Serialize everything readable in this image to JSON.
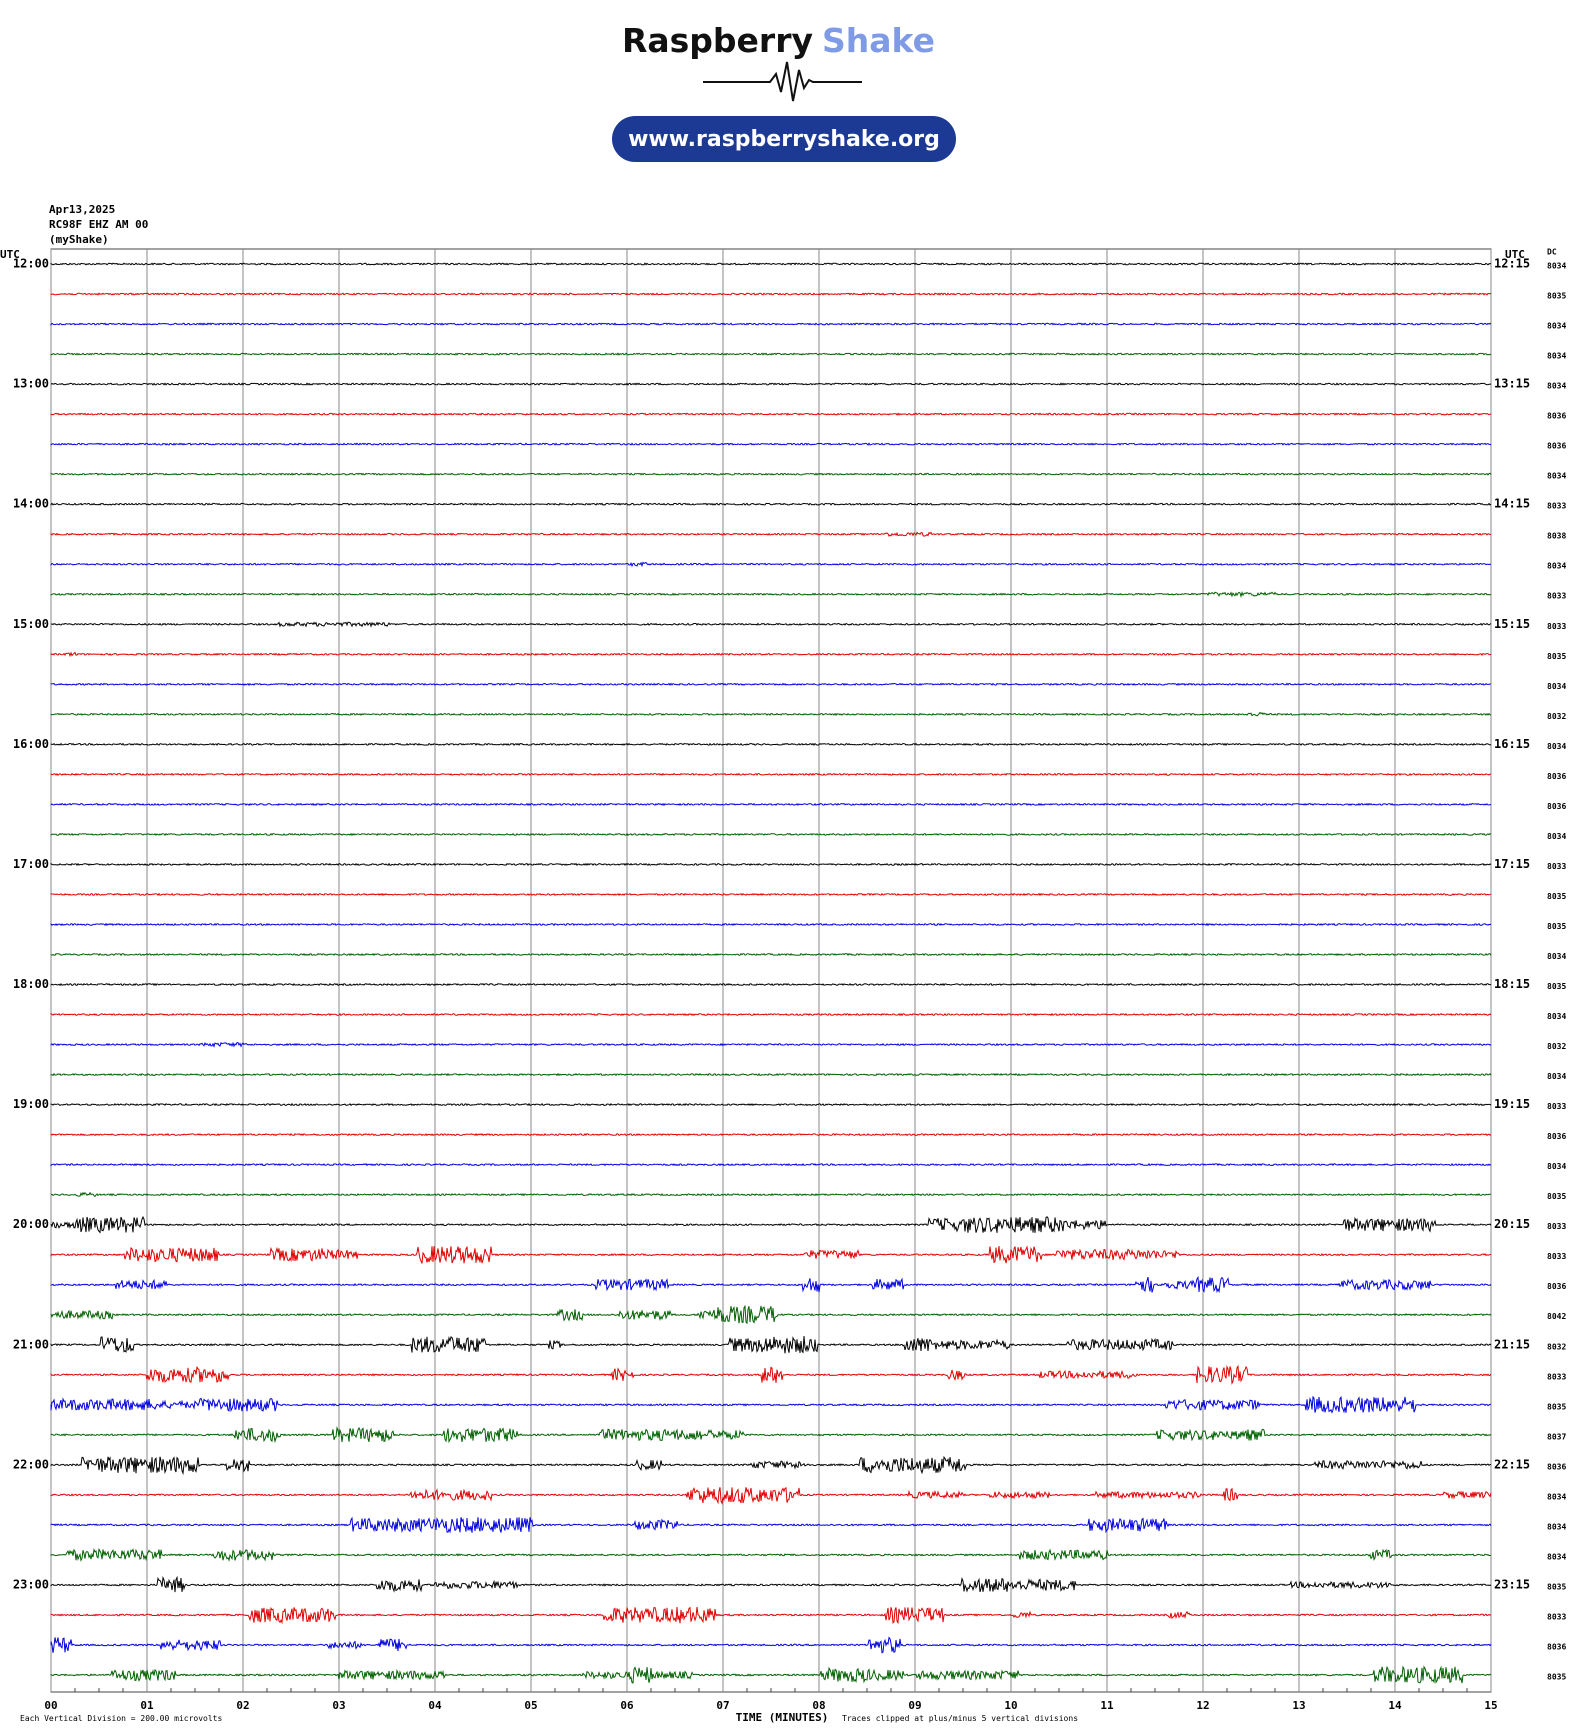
{
  "chart_data": {
    "type": "helicorder",
    "brand": "Raspberry",
    "brand_accent": "Shake",
    "url": "www.raspberryshake.org",
    "info": [
      "Apr13,2025",
      "RC98F EHZ AM 00",
      "(myShake)"
    ],
    "left_axis_label": "UTC",
    "right_axis_label": "UTC",
    "dc_label": "DC",
    "xlabel": "TIME (MINUTES)",
    "footer_left": "Each Vertical Division =  200.00 microvolts",
    "footer_right": "Traces clipped at plus/minus 5 vertical divisions",
    "colors": [
      "#000000",
      "#e00000",
      "#0000e0",
      "#006000"
    ],
    "left_labels": [
      "12:00",
      "13:00",
      "14:00",
      "15:00",
      "16:00",
      "17:00",
      "18:00",
      "19:00",
      "20:00",
      "21:00",
      "22:00",
      "23:00"
    ],
    "right_labels": [
      "12:15",
      "13:15",
      "14:15",
      "15:15",
      "16:15",
      "17:15",
      "18:15",
      "19:15",
      "20:15",
      "21:15",
      "22:15",
      "23:15"
    ],
    "dc": [
      8034,
      8035,
      8034,
      8034,
      8034,
      8036,
      8036,
      8034,
      8033,
      8038,
      8034,
      8033,
      8033,
      8035,
      8034,
      8032,
      8034,
      8036,
      8036,
      8034,
      8033,
      8035,
      8035,
      8034,
      8035,
      8034,
      8032,
      8034,
      8033,
      8036,
      8034,
      8035,
      8033,
      8033,
      8036,
      8042,
      8032,
      8033,
      8035,
      8037,
      8036,
      8034,
      8034,
      8034,
      8035,
      8033,
      8036,
      8035
    ],
    "xlim": [
      0,
      15
    ],
    "xticks": [
      {
        "value": 0,
        "label": "00"
      },
      {
        "value": 1,
        "label": "01"
      },
      {
        "value": 2,
        "label": "02"
      },
      {
        "value": 3,
        "label": "03"
      },
      {
        "value": 4,
        "label": "04"
      },
      {
        "value": 5,
        "label": "05"
      },
      {
        "value": 6,
        "label": "06"
      },
      {
        "value": 7,
        "label": "07"
      },
      {
        "value": 8,
        "label": "08"
      },
      {
        "value": 9,
        "label": "09"
      },
      {
        "value": 10,
        "label": "10"
      },
      {
        "value": 11,
        "label": "11"
      },
      {
        "value": 12,
        "label": "12"
      },
      {
        "value": 13,
        "label": "13"
      },
      {
        "value": 14,
        "label": "14"
      },
      {
        "value": 15,
        "label": "15"
      }
    ],
    "grid": true
  }
}
